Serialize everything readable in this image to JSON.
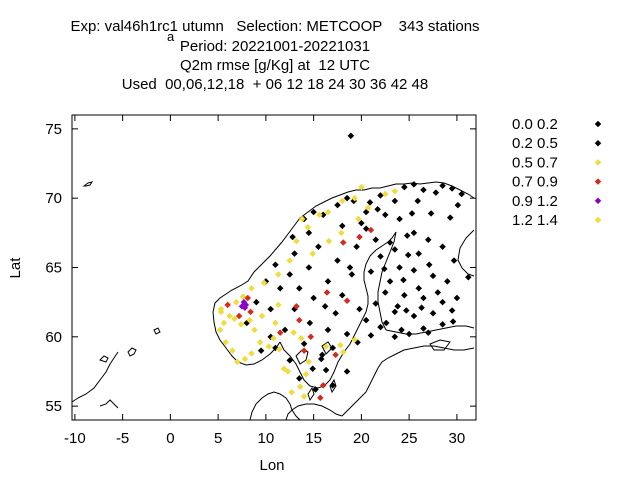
{
  "header": {
    "line1": "Exp: val46h1rc1 utumn   Selection: METCOOP    343 stations",
    "line1_sub": "a",
    "line2": "Period: 20221001-20221031",
    "line3": "Q2m rmse [g/Kg] at  12 UTC",
    "line4": "Used  00,06,12,18  + 06 12 18 24 30 36 42 48"
  },
  "axes": {
    "xlabel": "Lon",
    "ylabel": "Lat",
    "xticks": [
      -10,
      -5,
      0,
      5,
      10,
      15,
      20,
      25,
      30
    ],
    "yticks": [
      55,
      60,
      65,
      70,
      75
    ]
  },
  "legend": {
    "entries": [
      {
        "label": "0.0 0.2",
        "color": "#000000"
      },
      {
        "label": "0.2 0.5",
        "color": "#000000"
      },
      {
        "label": "0.5 0.7",
        "color": "#f0dc3c"
      },
      {
        "label": "0.7 0.9",
        "color": "#d62a1e"
      },
      {
        "label": "0.9 1.2",
        "color": "#8b00c8"
      },
      {
        "label": "1.2 1.4",
        "color": "#f0dc3c"
      }
    ]
  },
  "chart_data": {
    "type": "scatter",
    "xlabel": "Lon",
    "ylabel": "Lat",
    "xlim": [
      -10.3,
      32
    ],
    "ylim": [
      54,
      76
    ],
    "series": [
      {
        "name": "0.0 0.2",
        "color": "#000000",
        "points": [
          [
            18.9,
            74.5
          ],
          [
            19.2,
            69.8
          ],
          [
            20.5,
            69.0
          ],
          [
            22.0,
            70.2
          ],
          [
            23.5,
            69.8
          ],
          [
            24.5,
            70.8
          ],
          [
            25.5,
            71.0
          ],
          [
            26.5,
            70.6
          ],
          [
            27.8,
            70.4
          ],
          [
            28.5,
            70.9
          ],
          [
            29.5,
            70.7
          ],
          [
            30.5,
            70.3
          ],
          [
            24.0,
            68.5
          ],
          [
            25.5,
            67.5
          ],
          [
            27.0,
            67.0
          ],
          [
            28.5,
            66.5
          ],
          [
            26.0,
            66.0
          ],
          [
            23.5,
            66.3
          ],
          [
            22.0,
            65.8
          ],
          [
            21.0,
            64.7
          ],
          [
            23.0,
            64.0
          ],
          [
            25.5,
            64.8
          ],
          [
            27.5,
            64.4
          ],
          [
            29.0,
            64.0
          ],
          [
            24.5,
            63.0
          ],
          [
            26.5,
            62.8
          ],
          [
            28.5,
            62.5
          ],
          [
            22.5,
            63.2
          ],
          [
            21.5,
            62.4
          ],
          [
            23.5,
            61.8
          ],
          [
            25.5,
            61.5
          ],
          [
            27.5,
            61.7
          ],
          [
            29.5,
            61.9
          ],
          [
            22.0,
            60.7
          ],
          [
            24.2,
            60.5
          ],
          [
            26.5,
            60.6
          ],
          [
            28.5,
            60.9
          ],
          [
            19.5,
            66.5
          ],
          [
            18.0,
            68.0
          ],
          [
            20.5,
            67.8
          ],
          [
            17.5,
            65.5
          ],
          [
            19.0,
            64.5
          ],
          [
            16.5,
            64.0
          ],
          [
            18.0,
            63.0
          ],
          [
            17.3,
            61.7
          ],
          [
            19.8,
            62.0
          ],
          [
            15.5,
            66.5
          ],
          [
            14.5,
            67.5
          ],
          [
            16.0,
            68.8
          ],
          [
            17.5,
            69.5
          ],
          [
            13.0,
            66.0
          ],
          [
            14.5,
            65.0
          ],
          [
            12.5,
            64.5
          ],
          [
            13.5,
            63.5
          ],
          [
            14.6,
            61.0
          ],
          [
            16.5,
            60.5
          ],
          [
            18.5,
            60.2
          ],
          [
            17.0,
            59.2
          ],
          [
            15.8,
            58.4
          ],
          [
            14.0,
            59.5
          ],
          [
            12.0,
            60.5
          ],
          [
            13.0,
            62.0
          ],
          [
            11.5,
            63.5
          ],
          [
            10.5,
            62.0
          ],
          [
            9.0,
            62.5
          ],
          [
            8.0,
            61.0
          ],
          [
            10.5,
            60.0
          ],
          [
            11.0,
            59.2
          ],
          [
            9.5,
            59.0
          ],
          [
            19.6,
            59.6
          ],
          [
            20.5,
            61.2
          ],
          [
            21.7,
            69.2
          ],
          [
            25.9,
            69.8
          ],
          [
            15.9,
            58.7
          ],
          [
            23.8,
            62.2
          ],
          [
            24.9,
            65.9
          ],
          [
            31.2,
            64.3
          ],
          [
            29.3,
            68.6
          ]
        ]
      },
      {
        "name": "0.2 0.5",
        "color": "#000000",
        "points": [
          [
            20.0,
            68.2
          ],
          [
            21.5,
            67.0
          ],
          [
            22.5,
            68.8
          ],
          [
            23.0,
            66.8
          ],
          [
            24.0,
            65.0
          ],
          [
            26.0,
            63.5
          ],
          [
            28.0,
            63.2
          ],
          [
            30.0,
            62.8
          ],
          [
            22.6,
            61.0
          ],
          [
            25.0,
            60.2
          ],
          [
            27.0,
            60.3
          ],
          [
            18.8,
            65.0
          ],
          [
            16.2,
            62.2
          ],
          [
            15.0,
            62.8
          ],
          [
            12.8,
            67.2
          ],
          [
            15.0,
            69.0
          ],
          [
            18.5,
            70.0
          ],
          [
            14.0,
            68.5
          ],
          [
            11.0,
            65.2
          ],
          [
            10.0,
            64.0
          ],
          [
            17.0,
            56.5
          ],
          [
            15.2,
            56.2
          ],
          [
            13.5,
            57.0
          ],
          [
            18.5,
            57.5
          ],
          [
            16.3,
            57.6
          ],
          [
            14.9,
            57.7
          ],
          [
            12.5,
            58.3
          ],
          [
            23.5,
            60.0
          ],
          [
            21.0,
            60.1
          ],
          [
            29.6,
            61.1
          ],
          [
            24.8,
            67.3
          ],
          [
            27.3,
            68.9
          ],
          [
            30.1,
            69.5
          ],
          [
            25.3,
            68.9
          ],
          [
            20.9,
            69.7
          ],
          [
            22.4,
            64.9
          ],
          [
            27.1,
            65.2
          ],
          [
            29.7,
            65.5
          ],
          [
            24.4,
            64.1
          ],
          [
            26.3,
            62.1
          ],
          [
            24.7,
            61.9
          ]
        ]
      },
      {
        "name": "0.5 0.7",
        "color": "#f0dc3c",
        "points": [
          [
            5.3,
            62.0
          ],
          [
            5.6,
            61.0
          ],
          [
            5.2,
            60.5
          ],
          [
            5.8,
            59.6
          ],
          [
            6.5,
            59.0
          ],
          [
            7.0,
            58.2
          ],
          [
            7.8,
            58.4
          ],
          [
            8.5,
            58.8
          ],
          [
            9.4,
            59.6
          ],
          [
            10.8,
            59.9
          ],
          [
            11.4,
            59.1
          ],
          [
            10.3,
            59.3
          ],
          [
            6.2,
            61.5
          ],
          [
            6.9,
            62.5
          ],
          [
            7.6,
            62.9
          ],
          [
            8.5,
            63.5
          ],
          [
            9.8,
            63.9
          ],
          [
            11.3,
            64.5
          ],
          [
            12.5,
            65.5
          ],
          [
            13.2,
            66.9
          ],
          [
            14.4,
            67.9
          ],
          [
            13.8,
            68.5
          ],
          [
            15.6,
            68.8
          ],
          [
            16.5,
            69.0
          ],
          [
            18.0,
            69.8
          ],
          [
            19.3,
            70.0
          ],
          [
            20.0,
            70.8
          ],
          [
            22.5,
            70.3
          ],
          [
            12.9,
            60.3
          ],
          [
            13.7,
            59.9
          ],
          [
            14.5,
            58.2
          ],
          [
            16.3,
            59.3
          ],
          [
            17.8,
            59.4
          ],
          [
            18.1,
            58.9
          ],
          [
            19.3,
            59.8
          ],
          [
            14.2,
            57.3
          ],
          [
            12.3,
            57.5
          ],
          [
            11.9,
            57.7
          ],
          [
            13.6,
            56.4
          ],
          [
            14.0,
            55.7
          ],
          [
            12.7,
            56.0
          ],
          [
            11.3,
            62.3
          ],
          [
            11.0,
            61.0
          ],
          [
            8.8,
            60.5
          ],
          [
            7.4,
            60.9
          ],
          [
            9.6,
            61.5
          ],
          [
            16.6,
            66.9
          ],
          [
            17.9,
            67.5
          ],
          [
            19.7,
            68.5
          ],
          [
            20.7,
            69.3
          ],
          [
            23.5,
            70.5
          ],
          [
            14.9,
            66.0
          ]
        ]
      },
      {
        "name": "0.7 0.9",
        "color": "#d62a1e",
        "points": [
          [
            6.0,
            62.3
          ],
          [
            7.2,
            61.5
          ],
          [
            8.1,
            62.8
          ],
          [
            8.4,
            61.8
          ],
          [
            11.5,
            60.3
          ],
          [
            13.5,
            61.2
          ],
          [
            14.7,
            60.0
          ],
          [
            16.0,
            56.5
          ],
          [
            15.7,
            55.6
          ],
          [
            17.3,
            58.7
          ],
          [
            13.2,
            62.2
          ],
          [
            16.4,
            63.2
          ],
          [
            18.1,
            66.8
          ],
          [
            18.5,
            62.6
          ],
          [
            14.0,
            59.0
          ],
          [
            19.8,
            67.2
          ],
          [
            21.0,
            67.7
          ]
        ]
      },
      {
        "name": "0.9 1.2",
        "color": "#8b00c8",
        "points": [
          [
            7.7,
            62.5
          ],
          [
            7.9,
            62.3
          ],
          [
            7.5,
            62.2
          ],
          [
            7.8,
            62.1
          ]
        ]
      },
      {
        "name": "1.2 1.4",
        "color": "#f0dc3c",
        "points": [
          [
            5.3,
            61.8
          ],
          [
            6.7,
            61.3
          ],
          [
            8.3,
            61.2
          ]
        ]
      }
    ]
  }
}
